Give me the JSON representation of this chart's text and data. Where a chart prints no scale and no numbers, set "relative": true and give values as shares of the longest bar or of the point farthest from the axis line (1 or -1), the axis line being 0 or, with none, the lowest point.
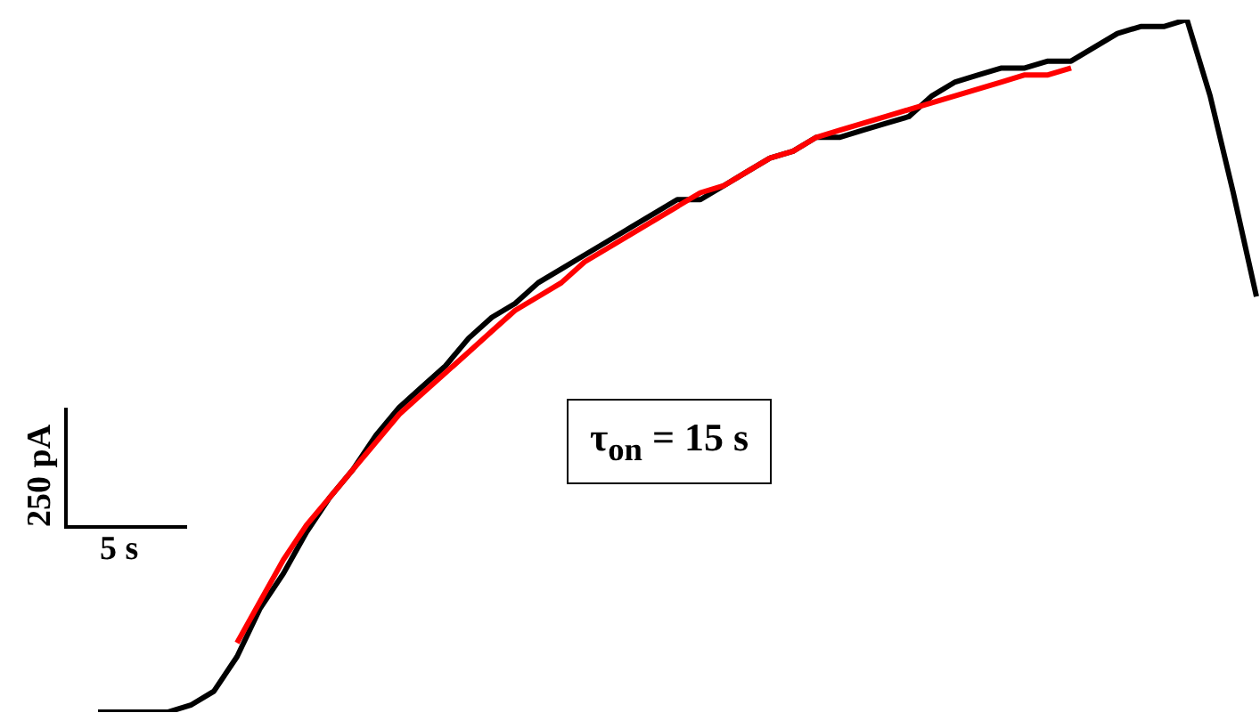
{
  "chart_data": {
    "type": "line",
    "relative": true,
    "marker": "none",
    "line_style": "solid",
    "categories": [
      null,
      null,
      null,
      null,
      null,
      null,
      null,
      null,
      null,
      null,
      null,
      null,
      null,
      null,
      null,
      null,
      null,
      null,
      null,
      null,
      null,
      null,
      null,
      null,
      null,
      null,
      null,
      null,
      null,
      null,
      null,
      null,
      null,
      null,
      null,
      null,
      null,
      null,
      null,
      null,
      null,
      null,
      null,
      null,
      null,
      null,
      null,
      null,
      null,
      null,
      null
    ],
    "series": [
      {
        "color": "#000000",
        "values": [
          0,
          0,
          0,
          0,
          0.01,
          0.03,
          0.08,
          0.15,
          0.2,
          0.26,
          0.31,
          0.35,
          0.4,
          0.44,
          0.47,
          0.5,
          0.54,
          0.57,
          0.59,
          0.62,
          0.64,
          0.66,
          0.68,
          0.7,
          0.72,
          0.74,
          0.74,
          0.76,
          0.78,
          0.8,
          0.81,
          0.83,
          0.83,
          0.84,
          0.85,
          0.86,
          0.89,
          0.91,
          0.92,
          0.93,
          0.93,
          0.94,
          0.94,
          0.96,
          0.98,
          0.99,
          0.99,
          1,
          0.89,
          0.75,
          0.6
        ]
      },
      {
        "type": "line",
        "color": "#ff0000",
        "values": [
          null,
          null,
          null,
          null,
          null,
          null,
          0.1,
          0.16,
          0.22,
          0.27,
          0.31,
          0.35,
          0.39,
          0.43,
          0.46,
          0.49,
          0.52,
          0.55,
          0.58,
          0.6,
          0.62,
          0.65,
          0.67,
          0.69,
          0.71,
          0.73,
          0.75,
          0.76,
          0.78,
          0.8,
          0.81,
          0.83,
          0.84,
          0.85,
          0.86,
          0.87,
          0.88,
          0.89,
          0.9,
          0.91,
          0.92,
          0.92,
          0.93,
          null,
          null,
          null,
          null,
          null,
          null,
          null,
          null
        ]
      }
    ],
    "annotations": [
      "250 pA",
      "5 s",
      "τ$_{on}$ = 15 s"
    ]
  }
}
